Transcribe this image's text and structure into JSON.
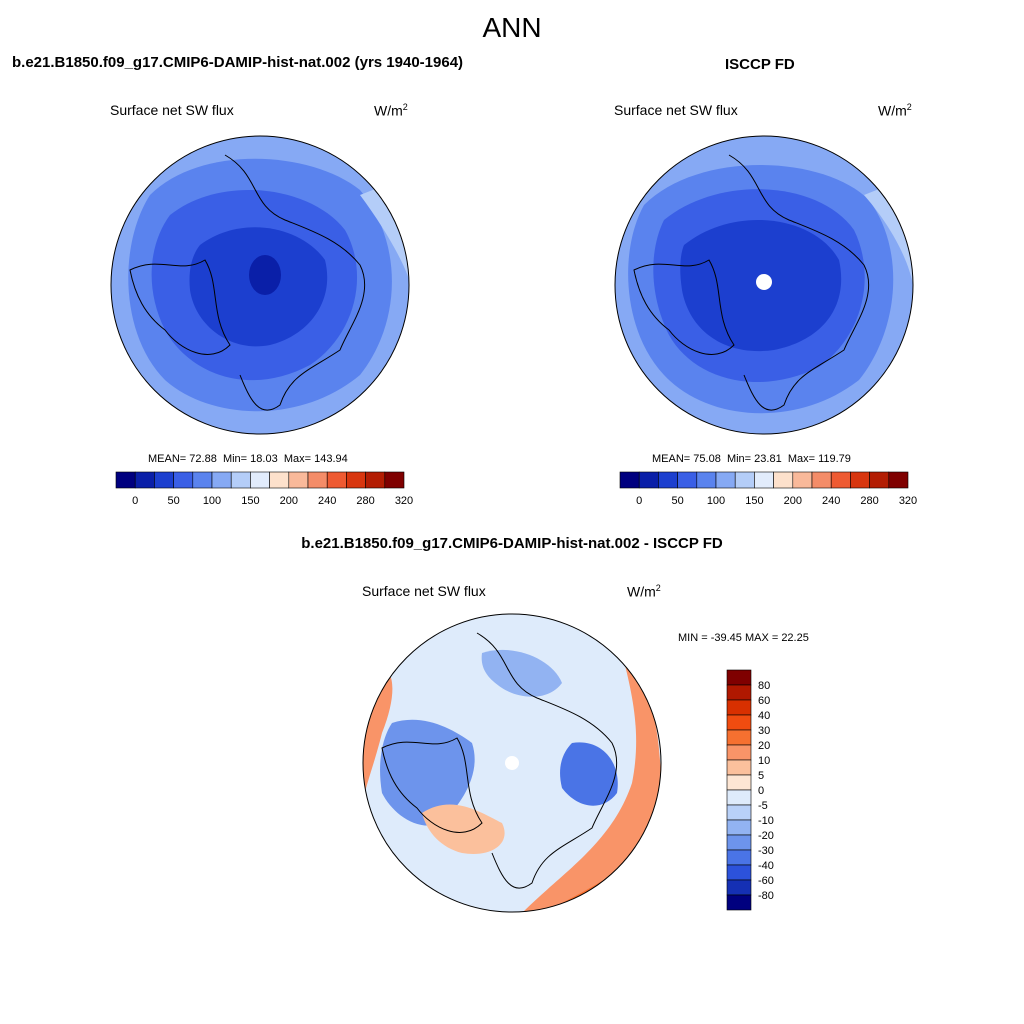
{
  "page": {
    "title": "ANN",
    "left_case": "b.e21.B1850.f09_g17.CMIP6-DAMIP-hist-nat.002 (yrs 1940-1964)",
    "right_case": "ISCCP FD",
    "diff_case": "b.e21.B1850.f09_g17.CMIP6-DAMIP-hist-nat.002 - ISCCP FD"
  },
  "chart_data": [
    {
      "type": "heatmap",
      "panel": "model",
      "variable": "Surface net SW flux",
      "units": "W/m",
      "units_exp": "2",
      "stats": {
        "mean_label": "MEAN=",
        "mean": "72.88",
        "min_label": "Min=",
        "min": "18.03",
        "max_label": "Max=",
        "max": "143.94"
      },
      "colorbar_ticks": [
        "0",
        "50",
        "100",
        "150",
        "200",
        "240",
        "280",
        "320"
      ],
      "colorbar_colors": [
        "#00007f",
        "#0a1fa8",
        "#1c3fcf",
        "#3a5fe6",
        "#5a83ee",
        "#86a9f4",
        "#b4cdf8",
        "#e2ecfc",
        "#fde1cc",
        "#f9b99a",
        "#f48c68",
        "#ee5a32",
        "#d8360f",
        "#b31d03",
        "#7f0000"
      ],
      "projection": "north polar stereographic"
    },
    {
      "type": "heatmap",
      "panel": "obs",
      "variable": "Surface net SW flux",
      "units": "W/m",
      "units_exp": "2",
      "stats": {
        "mean_label": "MEAN=",
        "mean": "75.08",
        "min_label": "Min=",
        "min": "23.81",
        "max_label": "Max=",
        "max": "119.79"
      },
      "colorbar_ticks": [
        "0",
        "50",
        "100",
        "150",
        "200",
        "240",
        "280",
        "320"
      ],
      "colorbar_colors": [
        "#00007f",
        "#0a1fa8",
        "#1c3fcf",
        "#3a5fe6",
        "#5a83ee",
        "#86a9f4",
        "#b4cdf8",
        "#e2ecfc",
        "#fde1cc",
        "#f9b99a",
        "#f48c68",
        "#ee5a32",
        "#d8360f",
        "#b31d03",
        "#7f0000"
      ],
      "projection": "north polar stereographic"
    },
    {
      "type": "heatmap",
      "panel": "difference",
      "variable": "Surface net SW flux",
      "units": "W/m",
      "units_exp": "2",
      "stats": {
        "text": "MIN = -39.45 MAX =  22.25",
        "min": -39.45,
        "max": 22.25
      },
      "colorbar_ticks": [
        "80",
        "60",
        "40",
        "30",
        "20",
        "10",
        "5",
        "0",
        "-5",
        "-10",
        "-20",
        "-30",
        "-40",
        "-60",
        "-80"
      ],
      "colorbar_colors": [
        "#7f0000",
        "#b01800",
        "#d83000",
        "#f04c10",
        "#f67030",
        "#f99468",
        "#fbc09c",
        "#fde6d4",
        "#deebfb",
        "#b9d1f8",
        "#92b3f2",
        "#6d94ec",
        "#4a74e6",
        "#2c52db",
        "#1530b4",
        "#00007f"
      ],
      "projection": "north polar stereographic"
    }
  ]
}
